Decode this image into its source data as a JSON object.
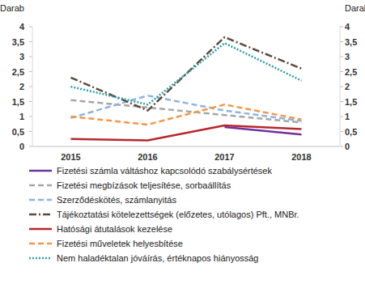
{
  "chart_data": {
    "type": "line",
    "y_label": "Darab",
    "y2_label": "Darab",
    "categories": [
      "2015",
      "2016",
      "2017",
      "2018"
    ],
    "ylim": [
      0,
      4
    ],
    "yticks": [
      0,
      {
        "value": 0.5,
        "label": "0,5"
      },
      1,
      {
        "value": 1.5,
        "label": "1,5"
      },
      2,
      {
        "value": 2.5,
        "label": "2,5"
      },
      3,
      {
        "value": 3.5,
        "label": "3,5"
      },
      4
    ],
    "y2lim": [
      0,
      4
    ],
    "y2ticks": [
      0,
      {
        "value": 0.5,
        "label": "0,5"
      },
      1,
      {
        "value": 1.5,
        "label": "1,5"
      },
      2,
      {
        "value": 2.5,
        "label": "2,5"
      },
      3,
      {
        "value": 3.5,
        "label": "3,5"
      },
      4
    ],
    "grid": false,
    "legend": "bottom",
    "series": [
      {
        "name": "Fizetési számla váltáshoz kapcsolódó szabálysértések",
        "color": "#7030a0",
        "line_style": "solid",
        "values": [
          null,
          null,
          0.65,
          0.4
        ]
      },
      {
        "name": "Fizetési megbízások teljesítése, sorbaállítás",
        "color": "#a6a6a6",
        "line_style": "dashed",
        "values": [
          1.55,
          1.3,
          1.05,
          0.8
        ]
      },
      {
        "name": "Szerződéskötés, számlanyitás",
        "color": "#8db4e2",
        "line_style": "dashed",
        "values": [
          0.95,
          1.7,
          1.2,
          0.85
        ]
      },
      {
        "name": "Tájékoztatási kötelezettségek (előzetes, utólagos) Pft., MNBr.",
        "color": "#5c4a3c",
        "line_style": "dashdot",
        "values": [
          2.3,
          1.2,
          3.65,
          2.6
        ]
      },
      {
        "name": "Hatósági átutalások kezelése",
        "color": "#b8272c",
        "line_style": "solid",
        "values": [
          0.25,
          0.2,
          0.7,
          0.58
        ]
      },
      {
        "name": "Fizetési műveletek helyesbítése",
        "color": "#f79646",
        "line_style": "dashed",
        "values": [
          1.0,
          0.73,
          1.4,
          0.9
        ]
      },
      {
        "name": "Nem haladéktalan jóváírás, értéknapos hiányosság",
        "color": "#31a0a8",
        "line_style": "dotted",
        "values": [
          2.0,
          1.4,
          3.45,
          2.2
        ]
      }
    ]
  }
}
